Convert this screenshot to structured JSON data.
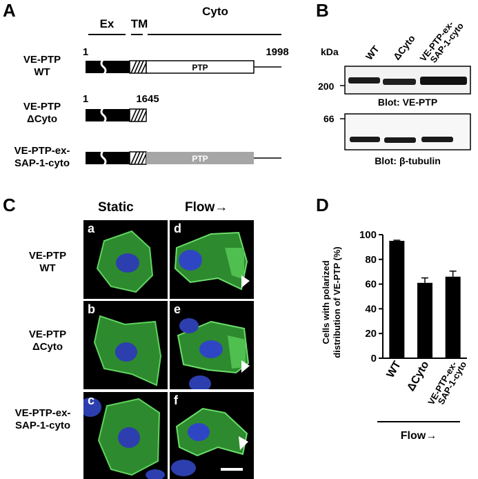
{
  "panelA": {
    "letter": "A",
    "domains": {
      "ex": "Ex",
      "tm": "TM",
      "cyto": "Cyto"
    },
    "constructs": [
      {
        "label_line1": "VE-PTP",
        "label_line2": "WT",
        "start": "1",
        "end": "1998",
        "domain_label": "PTP"
      },
      {
        "label_line1": "VE-PTP",
        "label_line2": "ΔCyto",
        "start": "1",
        "end": "1645"
      },
      {
        "label_line1": "VE-PTP-ex-",
        "label_line2": "SAP-1-cyto",
        "domain_label": "PTP"
      }
    ],
    "colors": {
      "wt_ptp": "#ffffff",
      "sap_ptp": "#a6a6a6",
      "ex": "#000000"
    }
  },
  "panelB": {
    "letter": "B",
    "kda_label": "kDa",
    "lanes": [
      "WT",
      "ΔCyto",
      "VE-PTP-ex-SAP-1-cyto"
    ],
    "lane3_line1": "VE-PTP-ex-",
    "lane3_line2": "SAP-1-cyto",
    "marker_top": "200",
    "marker_bottom": "66",
    "blot_top_caption": "Blot: VE-PTP",
    "blot_bottom_caption": "Blot: β-tubulin"
  },
  "panelC": {
    "letter": "C",
    "col_static": "Static",
    "col_flow": "Flow→",
    "rows": [
      {
        "line1": "VE-PTP",
        "line2": "WT",
        "left": "a",
        "right": "d"
      },
      {
        "line1": "VE-PTP",
        "line2": "ΔCyto",
        "left": "b",
        "right": "e"
      },
      {
        "line1": "VE-PTP-ex-",
        "line2": "SAP-1-cyto",
        "left": "c",
        "right": "f"
      }
    ]
  },
  "panelD": {
    "letter": "D",
    "flow_label": "Flow→"
  },
  "chart_data": {
    "type": "bar",
    "categories": [
      "WT",
      "ΔCyto",
      "VE-PTP-ex-SAP-1-cyto"
    ],
    "values": [
      95,
      61,
      66
    ],
    "errors": [
      0.5,
      4,
      4.5
    ],
    "ylabel_line1": "Cells with polarized",
    "ylabel_line2": "distribution of VE-PTP (%)",
    "ylim": [
      0,
      100
    ],
    "yticks": [
      "0",
      "20",
      "40",
      "60",
      "80",
      "100"
    ],
    "bar_color": "#000000"
  }
}
